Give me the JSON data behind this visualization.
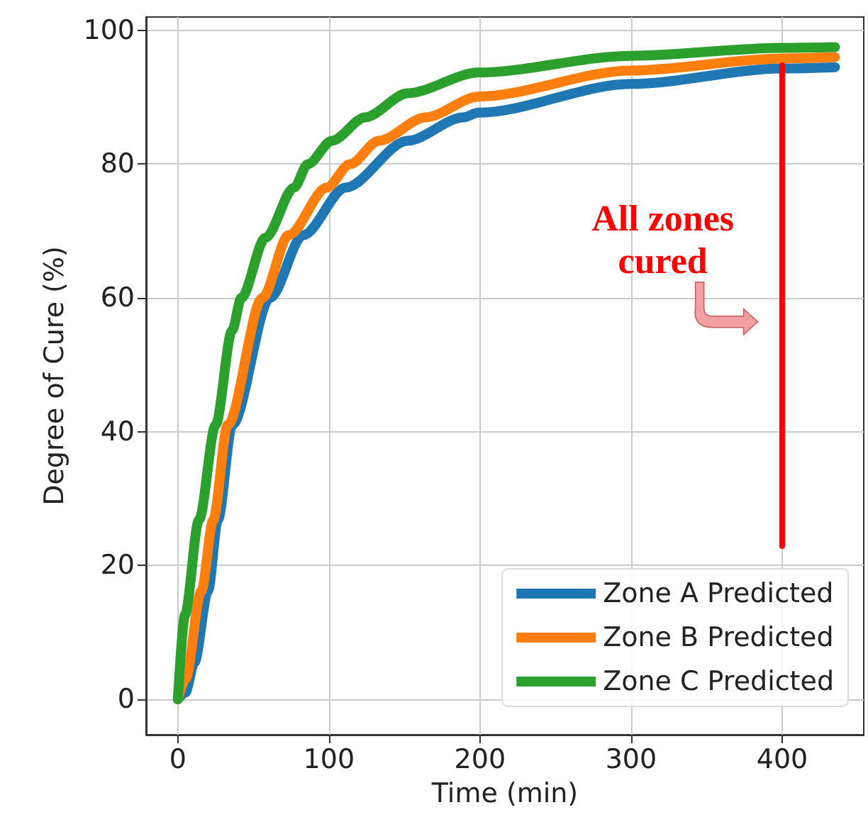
{
  "chart_data": {
    "type": "line",
    "xlabel": "Time (min)",
    "ylabel": "Degree of Cure (%)",
    "xlim": [
      -21,
      454
    ],
    "xticks": [
      0,
      100,
      200,
      300,
      400
    ],
    "ylim": [
      -5.3,
      102
    ],
    "yticks": [
      0,
      20,
      40,
      60,
      80,
      100
    ],
    "grid": true,
    "legend": "bottom right",
    "marker": "none",
    "line_style": "solid",
    "series": [
      {
        "name": "Zone A Predicted",
        "color": "#1f77b4",
        "x": [
          0,
          5,
          11,
          20,
          26.5,
          36,
          61,
          83,
          111,
          152,
          189,
          199,
          300,
          400,
          435
        ],
        "values": [
          0,
          1,
          5.5,
          16.2,
          26.8,
          41,
          60,
          69.4,
          76.5,
          83.5,
          87,
          87.7,
          92,
          94.3,
          94.5
        ]
      },
      {
        "name": "Zone B Predicted",
        "color": "#ff7f0e",
        "x": [
          0,
          5,
          15.6,
          23.4,
          33,
          56,
          73.4,
          98.5,
          114,
          133,
          164,
          199,
          300,
          400,
          435
        ],
        "values": [
          0,
          3,
          16.2,
          26.8,
          41,
          60,
          69.4,
          76.5,
          80,
          83.5,
          87,
          90.1,
          94,
          95.8,
          96
        ]
      },
      {
        "name": "Zone C Predicted",
        "color": "#2ca02c",
        "x": [
          0,
          4.7,
          14,
          25,
          36,
          42,
          58,
          77,
          86,
          102,
          124,
          152,
          199,
          300,
          400,
          435
        ],
        "values": [
          0,
          12.6,
          26.8,
          41,
          55.2,
          60,
          69,
          76.5,
          80,
          83.5,
          87,
          90.6,
          93.7,
          96.2,
          97.4,
          97.5
        ]
      },
      {
        "color": "#ff0000",
        "x": [
          400,
          400
        ],
        "values": [
          22.9,
          94.8
        ]
      }
    ],
    "annotations": [
      "All zones\ncured"
    ]
  }
}
